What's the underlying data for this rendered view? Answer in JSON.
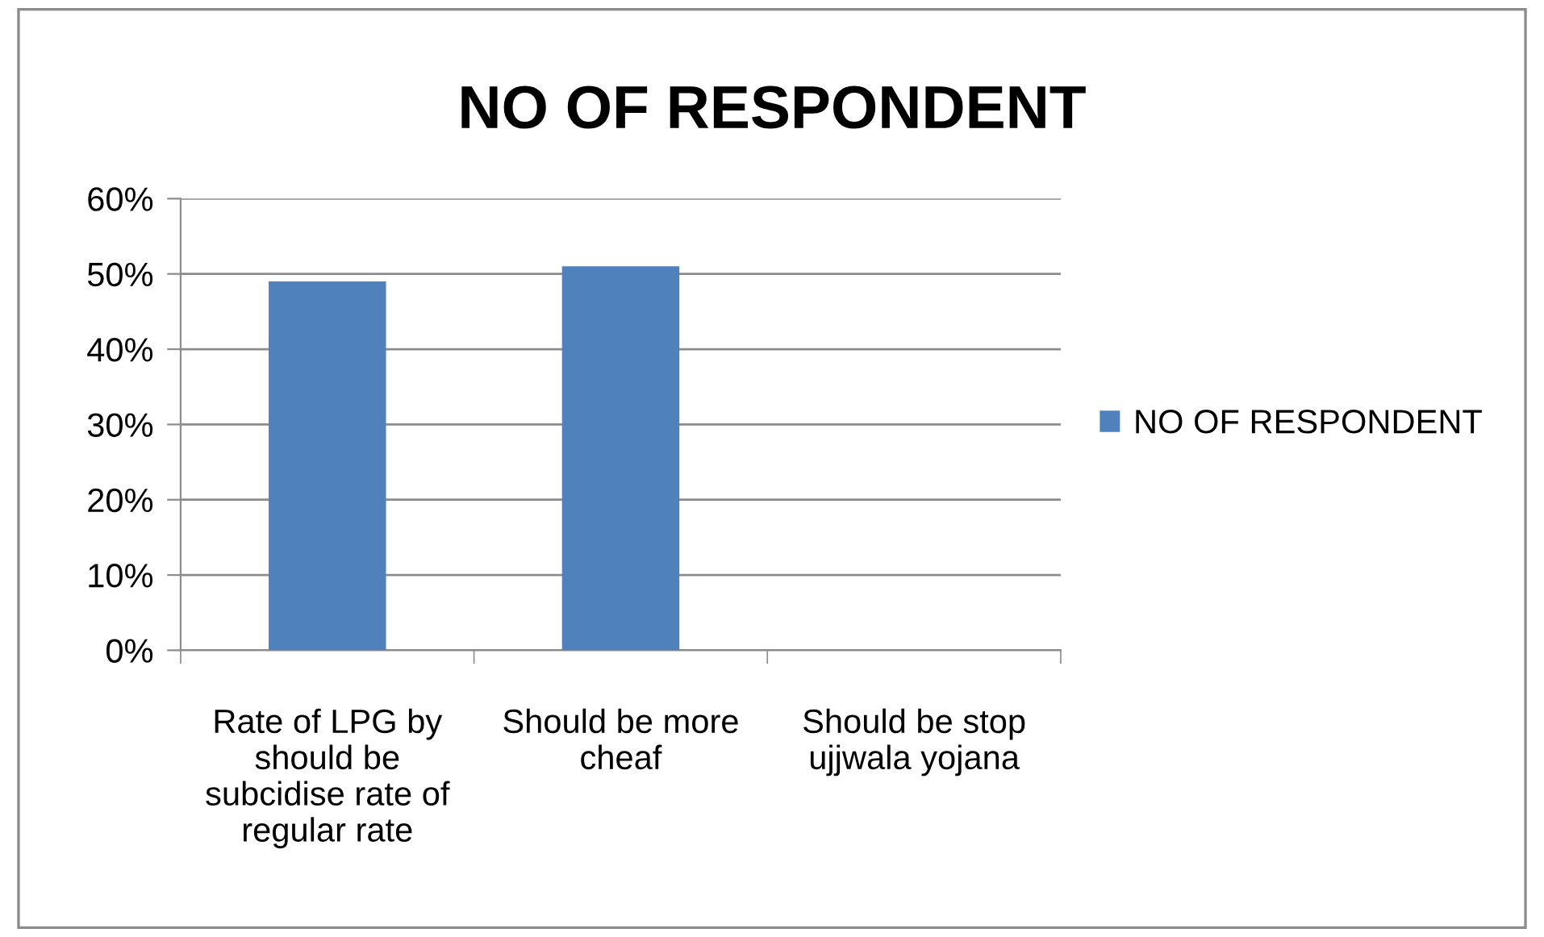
{
  "chart_data": {
    "type": "bar",
    "title": "NO OF RESPONDENT",
    "categories": [
      "Rate of LPG by should be subcidise rate of regular rate",
      "Should be more cheaf",
      "Should be stop ujjwala yojana"
    ],
    "series": [
      {
        "name": "NO OF RESPONDENT",
        "color": "#4f81bd",
        "values": [
          49,
          51,
          0
        ]
      }
    ],
    "ylim": [
      0,
      60
    ],
    "yticks": [
      {
        "value": 0,
        "label": "0%"
      },
      {
        "value": 10,
        "label": "10%"
      },
      {
        "value": 20,
        "label": "20%"
      },
      {
        "value": 30,
        "label": "30%"
      },
      {
        "value": 40,
        "label": "40%"
      },
      {
        "value": 50,
        "label": "50%"
      },
      {
        "value": 60,
        "label": "60%"
      }
    ],
    "grid": "y",
    "legend": "right"
  }
}
